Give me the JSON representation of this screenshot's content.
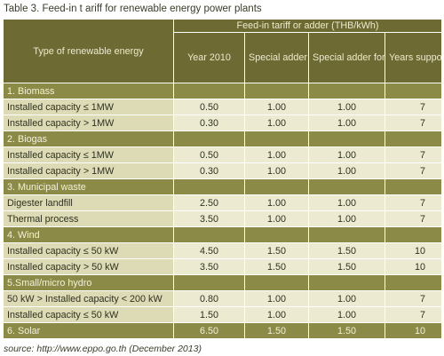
{
  "caption": "Table 3. Feed-in t ariff for renewable energy power plants",
  "header": {
    "type_label": "Type of renewable energy",
    "group_label": "Feed-in tariff or adder (THB/kWh)",
    "year2010": "Year 2010",
    "diesel": "Special adder for diesel replacement",
    "southern": "Special adder for three southernmost provinces",
    "years": "Years supported"
  },
  "sections": [
    {
      "category": "1. Biomass",
      "rows": [
        [
          "Installed capacity ≤ 1MW",
          "0.50",
          "1.00",
          "1.00",
          "7"
        ],
        [
          "Installed capacity > 1MW",
          "0.30",
          "1.00",
          "1.00",
          "7"
        ]
      ]
    },
    {
      "category": "2. Biogas",
      "rows": [
        [
          "Installed capacity ≤ 1MW",
          "0.50",
          "1.00",
          "1.00",
          "7"
        ],
        [
          "Installed capacity > 1MW",
          "0.30",
          "1.00",
          "1.00",
          "7"
        ]
      ]
    },
    {
      "category": "3. Municipal waste",
      "rows": [
        [
          "Digester landfill",
          "2.50",
          "1.00",
          "1.00",
          "7"
        ],
        [
          "Thermal process",
          "3.50",
          "1.00",
          "1.00",
          "7"
        ]
      ]
    },
    {
      "category": "4. Wind",
      "rows": [
        [
          "Installed capacity ≤ 50 kW",
          "4.50",
          "1.50",
          "1.50",
          "10"
        ],
        [
          "Installed capacity > 50 kW",
          "3.50",
          "1.50",
          "1.50",
          "10"
        ]
      ]
    },
    {
      "category": "5.Small/micro hydro",
      "rows": [
        [
          "50 kW > Installed capacity < 200 kW",
          "0.80",
          "1.00",
          "1.00",
          "7"
        ],
        [
          "Installed capacity ≤ 50 kW",
          "1.50",
          "1.00",
          "1.00",
          "7"
        ]
      ]
    },
    {
      "category": "6. Solar",
      "values": [
        "6.50",
        "1.50",
        "1.50",
        "10"
      ],
      "rows": []
    }
  ],
  "source": "source: http://www.eppo.go.th (December 2013)"
}
